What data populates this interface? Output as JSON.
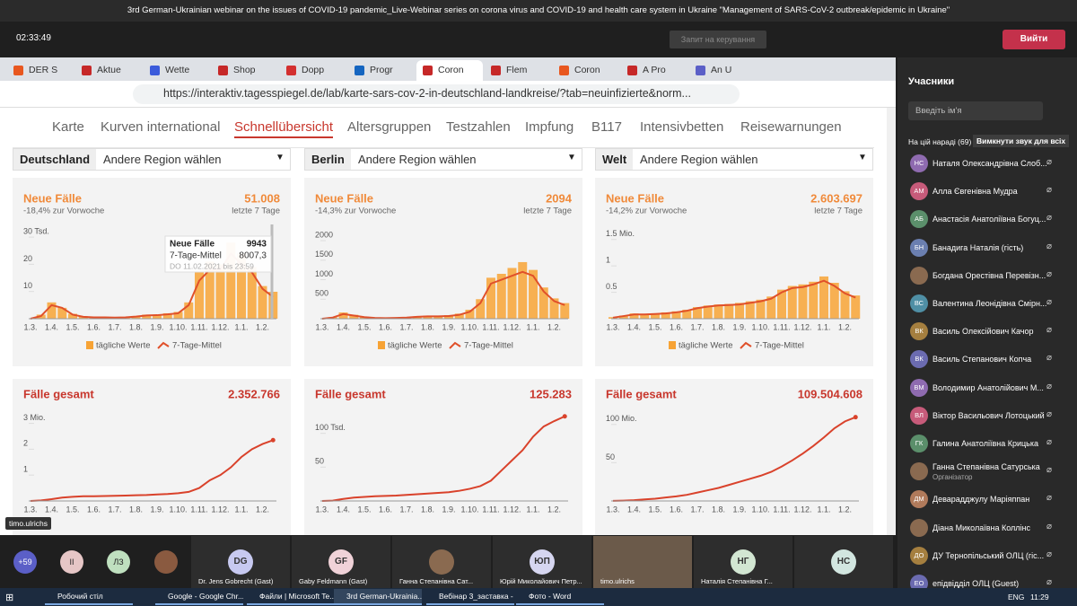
{
  "window": {
    "title": "3rd German-Ukrainian webinar on the issues of COVID-19 pandemic_Live-Webinar series on corona virus and COVID-19 and health care system in Ukraine \"Management of SARS-CoV-2 outbreak/epidemic in Ukraine\"",
    "clock": "02:33:49",
    "request_control": "Запит на керування",
    "leave": "Вийти"
  },
  "browser": {
    "tabs": [
      "DER S",
      "Aktue",
      "Wette",
      "Shop",
      "Dopp",
      "Progr",
      "Coron",
      "Flem",
      "Coron",
      "A Pro",
      "An U"
    ],
    "url": "https://interaktiv.tagesspiegel.de/lab/karte-sars-cov-2-in-deutschland-landkreise/?tab=neuinfizierte&norm..."
  },
  "nav": [
    "Karte",
    "Kurven international",
    "Schnellübersicht",
    "Altersgruppen",
    "Testzahlen",
    "Impfung",
    "B117",
    "Intensivbetten",
    "Reisewarnungen"
  ],
  "choose_region": "Andere Region wählen",
  "x_labels": [
    "1.3.",
    "1.4.",
    "1.5.",
    "1.6.",
    "1.7.",
    "1.8.",
    "1.9.",
    "1.10.",
    "1.11.",
    "1.12.",
    "1.1.",
    "1.2."
  ],
  "legend": [
    "tägliche Werte",
    "7-Tage-Mittel"
  ],
  "cards": [
    {
      "region": "Deutschland",
      "new": {
        "title": "Neue Fälle",
        "change": "-18,4% zur Vorwoche",
        "value": "51.008",
        "period": "letzte 7 Tage",
        "ylim": [
          0,
          33
        ],
        "yticks": [
          10,
          20,
          {
            "value": 30,
            "label": "30 Tsd."
          }
        ],
        "bars": [
          0,
          1.5,
          6,
          4,
          1.8,
          0.9,
          0.6,
          0.7,
          0.4,
          0.6,
          1,
          1.5,
          1.5,
          2,
          2.5,
          6,
          17,
          21,
          20,
          28,
          24,
          19,
          12,
          9.9
        ],
        "line": [
          0,
          1,
          5,
          4,
          1.5,
          0.7,
          0.5,
          0.5,
          0.4,
          0.5,
          0.8,
          1.2,
          1.3,
          1.6,
          2,
          5,
          14,
          18,
          18,
          24,
          20,
          17,
          11,
          8
        ]
      },
      "total": {
        "title": "Fälle gesamt",
        "value": "2.352.766",
        "ylim": [
          0,
          3.4
        ],
        "yticks": [
          1,
          2,
          {
            "value": 3,
            "label": "3 Mio."
          }
        ],
        "line": [
          0,
          0.02,
          0.07,
          0.13,
          0.16,
          0.18,
          0.18,
          0.19,
          0.2,
          0.21,
          0.22,
          0.23,
          0.25,
          0.27,
          0.3,
          0.35,
          0.5,
          0.8,
          1.0,
          1.3,
          1.7,
          2.0,
          2.2,
          2.35
        ]
      }
    },
    {
      "region": "Berlin",
      "new": {
        "title": "Neue Fälle",
        "change": "-14,3% zur Vorwoche",
        "value": "2094",
        "period": "letzte 7 Tage",
        "ylim": [
          0,
          2300
        ],
        "yticks": [
          500,
          1000,
          1500,
          2000
        ],
        "bars": [
          0,
          40,
          160,
          100,
          50,
          25,
          20,
          25,
          40,
          60,
          80,
          70,
          90,
          130,
          230,
          500,
          1050,
          1150,
          1300,
          1450,
          1250,
          800,
          520,
          400
        ],
        "line": [
          0,
          30,
          120,
          80,
          40,
          20,
          15,
          20,
          30,
          50,
          60,
          60,
          70,
          100,
          180,
          400,
          900,
          1000,
          1100,
          1200,
          1100,
          700,
          450,
          350
        ]
      },
      "total": {
        "title": "Fälle gesamt",
        "value": "125.283",
        "ylim": [
          0,
          130
        ],
        "yticks": [
          50,
          {
            "value": 100,
            "label": "100 Tsd."
          }
        ],
        "line": [
          0,
          0.5,
          3,
          5,
          6,
          7,
          7.5,
          8,
          9,
          10,
          11,
          12,
          13,
          15,
          18,
          22,
          30,
          45,
          60,
          75,
          95,
          110,
          118,
          125
        ]
      }
    },
    {
      "region": "Welt",
      "new": {
        "title": "Neue Fälle",
        "change": "-14,2% zur Vorwoche",
        "value": "2.603.697",
        "period": "letzte 7 Tage",
        "ylim": [
          0,
          1.7
        ],
        "yticks": [
          0.5,
          1,
          {
            "value": 1.5,
            "label": "1.5 Mio."
          }
        ],
        "bars": [
          0.03,
          0.06,
          0.1,
          0.09,
          0.1,
          0.12,
          0.14,
          0.17,
          0.22,
          0.25,
          0.27,
          0.28,
          0.3,
          0.33,
          0.36,
          0.42,
          0.55,
          0.62,
          0.65,
          0.7,
          0.8,
          0.68,
          0.52,
          0.44
        ],
        "line": [
          0.02,
          0.05,
          0.08,
          0.08,
          0.09,
          0.1,
          0.12,
          0.15,
          0.2,
          0.23,
          0.25,
          0.26,
          0.27,
          0.3,
          0.33,
          0.38,
          0.5,
          0.58,
          0.6,
          0.65,
          0.72,
          0.62,
          0.48,
          0.4
        ]
      },
      "total": {
        "title": "Fälle gesamt",
        "value": "109.504.608",
        "ylim": [
          0,
          115
        ],
        "yticks": [
          50,
          {
            "value": 100,
            "label": "100 Mio."
          }
        ],
        "line": [
          0.1,
          0.5,
          1,
          2,
          3,
          4.5,
          6,
          8,
          11,
          14,
          17,
          21,
          25,
          29,
          33,
          38,
          45,
          53,
          62,
          72,
          83,
          95,
          104,
          109.5
        ]
      }
    }
  ],
  "tooltip": {
    "title": "Neue Fälle",
    "value": "9943",
    "avg_label": "7-Tage-Mittel",
    "avg": "8007,3",
    "date": "DO 11.02.2021 bis 23:59"
  },
  "presenter": "timo.ulrichs",
  "panel": {
    "title": "Учасники",
    "search": "Введіть ім'я",
    "in_meeting": "На цій нараді (69)",
    "mute_all": "Вимкнути звук для всіх",
    "people": [
      {
        "initials": "НС",
        "name": "Наталя Олександрівна Слоб..."
      },
      {
        "initials": "АМ",
        "name": "Алла Євгенівна Мудра"
      },
      {
        "initials": "АБ",
        "name": "Анастасія Анатоліївна Богуц..."
      },
      {
        "initials": "БН",
        "name": "Банадига Наталія (гість)"
      },
      {
        "name": "Богдана Орестівна Перевізн..."
      },
      {
        "initials": "ВС",
        "name": "Валентина Леонідівна Смірн..."
      },
      {
        "initials": "ВК",
        "name": "Василь Олексійович Качор"
      },
      {
        "initials": "ВК",
        "name": "Василь Степанович Копча"
      },
      {
        "initials": "ВМ",
        "name": "Володимир Анатолійович М..."
      },
      {
        "initials": "ВЛ",
        "name": "Віктор Васильович Лотоцький"
      },
      {
        "initials": "ГК",
        "name": "Галина Анатоліївна Крицька"
      },
      {
        "name": "Ганна Степанівна Сатурська",
        "role": "Організатор"
      },
      {
        "initials": "ДМ",
        "name": "Деварадджулу Маріяппан"
      },
      {
        "name": "Діана Миколаївна Коллінс"
      },
      {
        "initials": "ДО",
        "name": "ДУ Тернопільський ОЛЦ (гіс..."
      },
      {
        "initials": "ЕО",
        "name": "епідвідділ ОЛЦ (Guest)"
      }
    ]
  },
  "strip": {
    "more": "+59",
    "small": [
      "ІІ",
      "ЛЗ"
    ],
    "tiles": [
      {
        "initials": "DG",
        "name": "Dr. Jens Gobrecht (Gast)"
      },
      {
        "initials": "GF",
        "name": "Gaby Feldmann (Gast)"
      },
      {
        "name": "Ганна Степанівна Сат..."
      },
      {
        "initials": "ЮП",
        "name": "Юрій Миколайович Петр..."
      },
      {
        "name": "timo.ulrichs"
      },
      {
        "initials": "НГ",
        "name": "Наталія Степанівна Г..."
      },
      {
        "initials": "НС"
      }
    ]
  },
  "taskbar": {
    "items": [
      "Робочий стіл",
      "Google - Google Chr...",
      "Файли | Microsoft Te...",
      "3rd German-Ukrainia...",
      "Вебінар 3_заставка - ...",
      "Фото - Word"
    ],
    "lang": "ENG",
    "time": "11:29"
  }
}
